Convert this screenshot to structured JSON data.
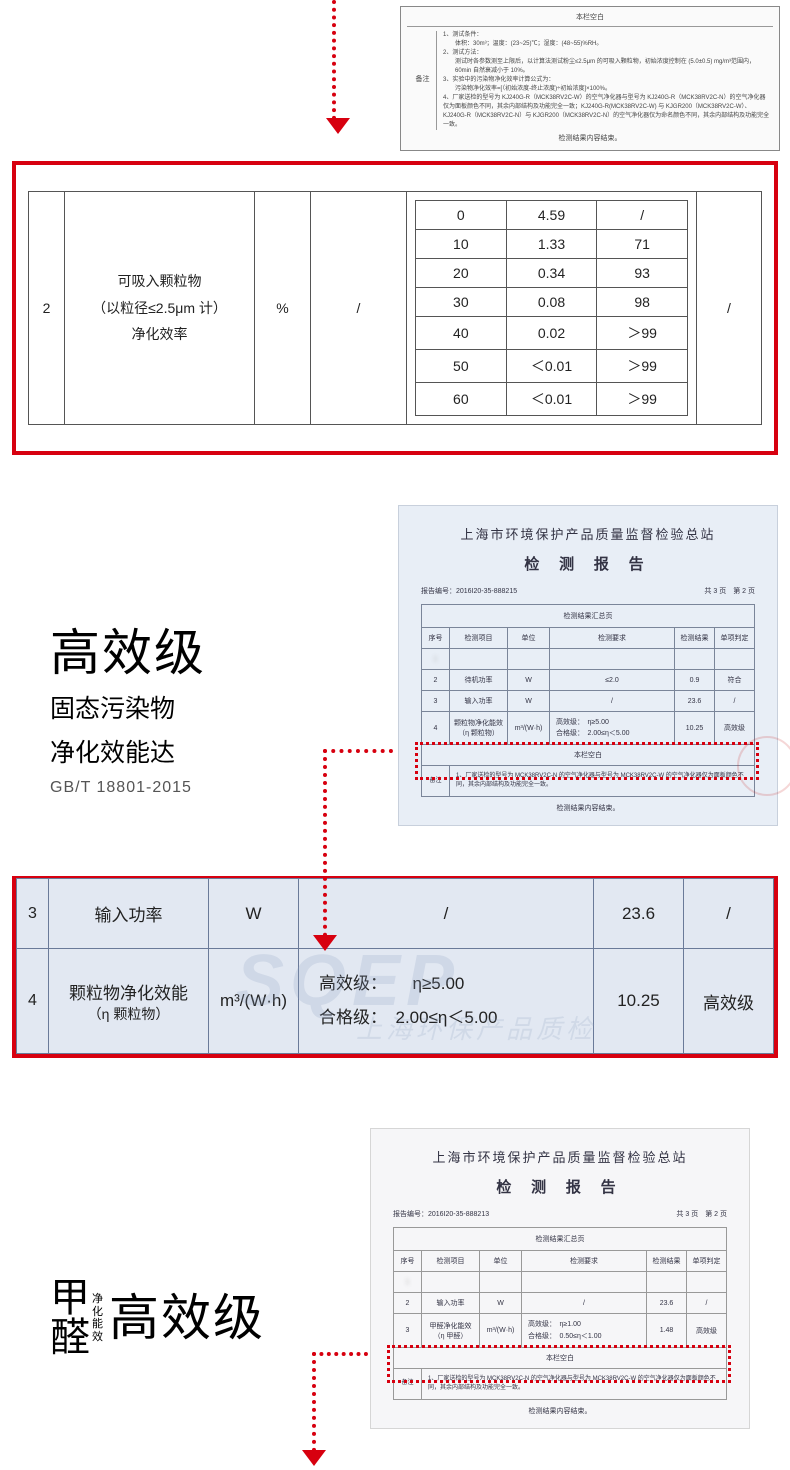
{
  "colors": {
    "accent_red": "#d7000f",
    "doc_blue_bg": "#e8eef6",
    "doc_gray_bg": "#f6f6f8"
  },
  "top_doc": {
    "blank": "本栏空白",
    "remark_label": "备注",
    "lines": [
      "1、测试条件：",
      "体积：30m³；温度：(23~25)℃；湿度：(48~55)%RH。",
      "2、测试方法：",
      "测试时各参数测至上限后，以计算法测试粉尘≤2.5μm 的可吸入颗粒物，初始浓度控制在 (5.0±0.5) mg/m³范围内，60min 自然衰减小于 10%。",
      "3、实验中的污染物净化效率计算公式为：",
      "污染物净化效率=[（初始浓度-终止浓度)÷初始浓度]×100%。",
      "4、厂家送检的型号为 KJ240G-R（MCK38RV2C-W）的空气净化器与型号为 KJ240G-R（MCK38RV2C-N）的空气净化器仅为面板颜色不同，其余内部结构及功能完全一致；KJ240G-R(MCK38RV2C-W) 与 KJGR200（MCK38RV2C-W）、KJ240G-R（MCK38RV2C-N）与 KJGR200（MCK38RV2C-N）的空气净化器仅为命名颜色不同，其余内部结构及功能完全一致。"
    ],
    "footer": "检测结果内容结束。"
  },
  "section1": {
    "idx": "2",
    "label_l1": "可吸入颗粒物",
    "label_l2": "（以粒径≤2.5μm 计）",
    "label_l3": "净化效率",
    "unit": "%",
    "slash": "/",
    "table": {
      "rows": [
        {
          "t": "0",
          "c": "4.59",
          "e": "/"
        },
        {
          "t": "10",
          "c": "1.33",
          "e": "71"
        },
        {
          "t": "20",
          "c": "0.34",
          "e": "93"
        },
        {
          "t": "30",
          "c": "0.08",
          "e": "98"
        },
        {
          "t": "40",
          "c": "0.02",
          "e": "＞99"
        },
        {
          "t": "50",
          "c": "＜0.01",
          "e": "＞99"
        },
        {
          "t": "60",
          "c": "＜0.01",
          "e": "＞99"
        }
      ]
    }
  },
  "heading2": {
    "big": "高效级",
    "mid1": "固态污染物",
    "mid2": "净化效能达",
    "std": "GB/T 18801-2015"
  },
  "report2": {
    "org": "上海市环境保护产品质量监督检验总站",
    "title": "检 测 报 告",
    "meta_left": "报告编号：2016I20-35-888215",
    "meta_right": "共 3 页　第 2 页",
    "sum_header": "检测结果汇总页",
    "th": {
      "idx": "序号",
      "item": "检测项目",
      "unit": "单位",
      "req": "检测要求",
      "result": "检测结果",
      "judge": "单项判定"
    },
    "rows": [
      {
        "idx": "1",
        "item": "　",
        "unit": "　",
        "req": "　",
        "result": "　",
        "judge": "　",
        "blur": true
      },
      {
        "idx": "2",
        "item": "待机功率",
        "unit": "W",
        "req": "≤2.0",
        "result": "0.9",
        "judge": "符合"
      },
      {
        "idx": "3",
        "item": "输入功率",
        "unit": "W",
        "req": "/",
        "result": "23.6",
        "judge": "/"
      },
      {
        "idx": "4",
        "item": "颗粒物净化能效\n（η 颗粒物）",
        "unit": "m³/(W·h)",
        "req_l1": "高效级：",
        "req_v1": "η≥5.00",
        "req_l2": "合格级：",
        "req_v2": "2.00≤η＜5.00",
        "result": "10.25",
        "judge": "高效级"
      }
    ],
    "blank": "本栏空白",
    "remark_label": "备注",
    "remark": "1、厂家送检的型号为 MCK38RV2C-N 的空气净化器与型号为 MCK38RV2C-W 的空气净化器仅为面板颜色不同，其余内部结构及功能完全一致。",
    "footer": "检测结果内容结束。"
  },
  "section3": {
    "watermark": "SQEP",
    "row3": {
      "idx": "3",
      "item": "输入功率",
      "unit": "W",
      "req": "/",
      "result": "23.6",
      "judge": "/"
    },
    "row4": {
      "idx": "4",
      "item_l1": "颗粒物净化效能",
      "item_l2": "（η 颗粒物）",
      "unit": "m³/(W·h)",
      "req_l1": "高效级：",
      "req_v1": "η≥5.00",
      "req_l2": "合格级：",
      "req_v2": "2.00≤η＜5.00",
      "result": "10.25",
      "judge": "高效级"
    }
  },
  "heading4": {
    "jq1": "甲",
    "jq2": "醛",
    "jq_small": "净化能效",
    "big": "高效级"
  },
  "report4": {
    "org": "上海市环境保护产品质量监督检验总站",
    "title": "检 测 报 告",
    "meta_left": "报告编号：2016I20-35-888213",
    "meta_right": "共 3 页　第 2 页",
    "sum_header": "检测结果汇总页",
    "th": {
      "idx": "序号",
      "item": "检测项目",
      "unit": "单位",
      "req": "检测要求",
      "result": "检测结果",
      "judge": "单项判定"
    },
    "rows": [
      {
        "idx": "1",
        "item": "　",
        "unit": "　",
        "req": "　",
        "result": "　",
        "judge": "　",
        "blur": true
      },
      {
        "idx": "2",
        "item": "输入功率",
        "unit": "W",
        "req": "/",
        "result": "23.6",
        "judge": "/"
      },
      {
        "idx": "3",
        "item": "甲醛净化能效\n（η 甲醛）",
        "unit": "m³/(W·h)",
        "req_l1": "高效级：",
        "req_v1": "η≥1.00",
        "req_l2": "合格级：",
        "req_v2": "0.50≤η＜1.00",
        "result": "1.48",
        "judge": "高效级"
      }
    ],
    "blank": "本栏空白",
    "remark_label": "备注",
    "remark": "1、厂家送检的型号为 MCK38RV2C-N 的空气净化器与型号为 MCK38RV2C-W 的空气净化器仅为面板颜色不同，其余内部结构及功能完全一致。",
    "footer": "检测结果内容结束。"
  }
}
